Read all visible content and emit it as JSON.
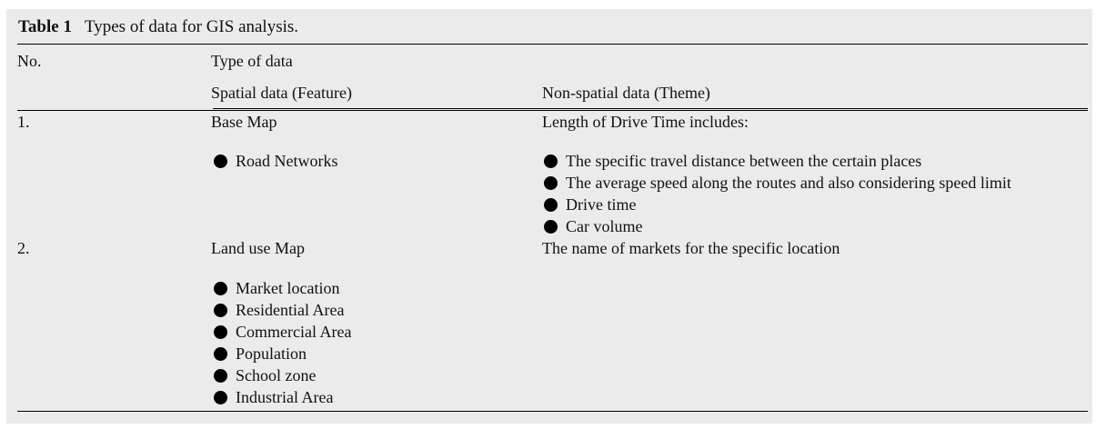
{
  "table": {
    "caption_label": "Table 1",
    "caption_text": "Types of data for GIS analysis.",
    "headers": {
      "no": "No.",
      "type_of_data": "Type of data",
      "spatial": "Spatial data (Feature)",
      "non_spatial": "Non-spatial data (Theme)"
    },
    "rows": [
      {
        "no": "1.",
        "spatial_title": "Base Map",
        "spatial_items": [
          "Road Networks"
        ],
        "non_spatial_title": "Length of Drive Time includes:",
        "non_spatial_items": [
          "The specific travel distance between the certain places",
          "The average speed along the routes and also considering speed limit",
          "Drive time",
          "Car volume"
        ]
      },
      {
        "no": "2.",
        "spatial_title": "Land use Map",
        "spatial_items": [
          "Market location",
          "Residential Area",
          "Commercial Area",
          "Population",
          "School zone",
          "Industrial Area"
        ],
        "non_spatial_title": "The name of markets for the specific location",
        "non_spatial_items": []
      }
    ]
  }
}
